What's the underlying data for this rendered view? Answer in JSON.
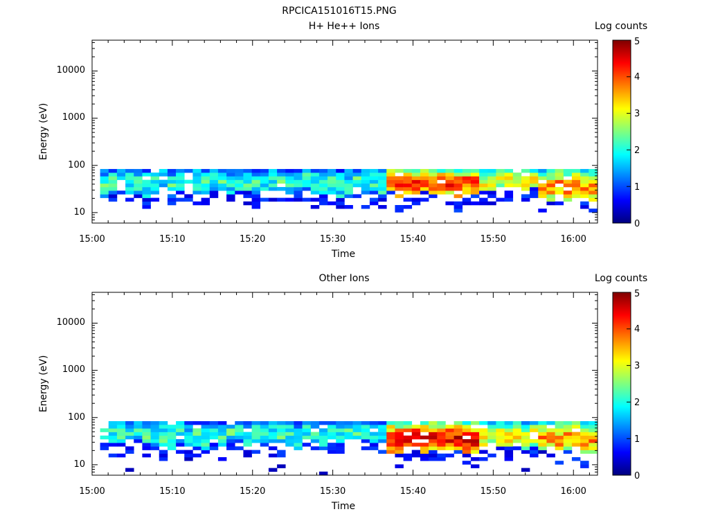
{
  "figure_title": "RPCICA151016T15.PNG",
  "colorbar_ticks": [
    "0",
    "1",
    "2",
    "3",
    "4",
    "5"
  ],
  "colormap": [
    "#00007f",
    "#0000ff",
    "#007fff",
    "#00ffff",
    "#7fff7f",
    "#ffff00",
    "#ff7f00",
    "#ff0000",
    "#7f0000"
  ],
  "chart_data": [
    {
      "type": "heatmap",
      "title": "H+ He++ Ions",
      "xlabel": "Time",
      "ylabel": "Energy (eV)",
      "x_tick_labels": [
        "15:00",
        "15:10",
        "15:20",
        "15:30",
        "15:40",
        "15:50",
        "16:00"
      ],
      "y_tick_labels": [
        "10",
        "100",
        "1000",
        "10000"
      ],
      "y_scale": "log",
      "ylim": [
        6,
        45000
      ],
      "xlim": [
        "15:00",
        "16:03"
      ],
      "colorbar": {
        "label": "Log counts",
        "range": [
          0,
          5
        ]
      },
      "band_energy_range_eV": [
        20,
        95
      ],
      "profile": [
        {
          "start": "15:00",
          "end": "15:36",
          "min_eV": 25,
          "peak_log_counts": 2.2
        },
        {
          "start": "15:36",
          "end": "15:48",
          "min_eV": 22,
          "peak_log_counts": 4.3
        },
        {
          "start": "15:48",
          "end": "15:55",
          "min_eV": 25,
          "peak_log_counts": 3.2
        },
        {
          "start": "15:55",
          "end": "16:03",
          "min_eV": 18,
          "peak_log_counts": 3.8
        }
      ]
    },
    {
      "type": "heatmap",
      "title": "Other Ions",
      "xlabel": "Time",
      "ylabel": "Energy (eV)",
      "x_tick_labels": [
        "15:00",
        "15:10",
        "15:20",
        "15:30",
        "15:40",
        "15:50",
        "16:00"
      ],
      "y_tick_labels": [
        "10",
        "100",
        "1000",
        "10000"
      ],
      "y_scale": "log",
      "ylim": [
        6,
        45000
      ],
      "xlim": [
        "15:00",
        "16:03"
      ],
      "colorbar": {
        "label": "Log counts",
        "range": [
          0,
          5
        ]
      },
      "band_energy_range_eV": [
        20,
        95
      ],
      "profile": [
        {
          "start": "15:00",
          "end": "15:36",
          "min_eV": 25,
          "peak_log_counts": 2.2
        },
        {
          "start": "15:36",
          "end": "15:48",
          "min_eV": 20,
          "peak_log_counts": 4.6
        },
        {
          "start": "15:48",
          "end": "15:55",
          "min_eV": 22,
          "peak_log_counts": 3.3
        },
        {
          "start": "15:55",
          "end": "16:03",
          "min_eV": 18,
          "peak_log_counts": 3.8
        }
      ]
    }
  ]
}
